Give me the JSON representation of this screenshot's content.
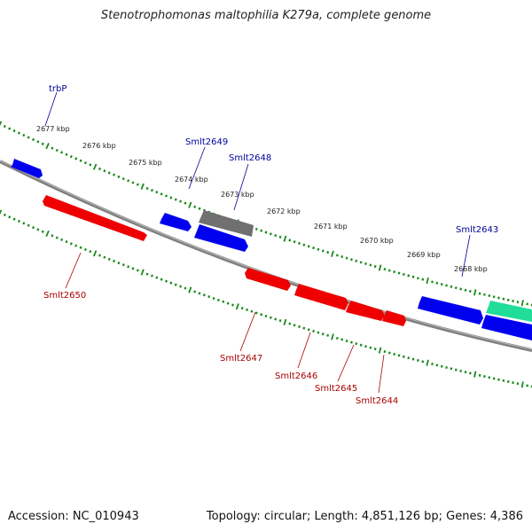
{
  "title": "Stenotrophomonas maltophilia K279a, complete genome",
  "footer": {
    "accession": "Accession: NC_010943",
    "summary": "Topology: circular; Length: 4,851,126 bp; Genes: 4,386"
  },
  "colors": {
    "backbone": "#808080",
    "tick": "#1a8a1a",
    "forward_gene": "#0000ee",
    "reverse_gene": "#ee0000",
    "gray_gene": "#707070",
    "teal_gene": "#22dd99",
    "label_forward": "#000099",
    "label_reverse": "#aa0000"
  },
  "scale_labels": [
    "2677 kbp",
    "2676 kbp",
    "2675 kbp",
    "2674 kbp",
    "2673 kbp",
    "2672 kbp",
    "2671 kbp",
    "2670 kbp",
    "2669 kbp",
    "2668 kbp"
  ],
  "gene_labels_forward": [
    "trbP",
    "Smlt2649",
    "Smlt2648",
    "Smlt2643"
  ],
  "gene_labels_reverse": [
    "Smlt2650",
    "Smlt2647",
    "Smlt2646",
    "Smlt2645",
    "Smlt2644"
  ]
}
